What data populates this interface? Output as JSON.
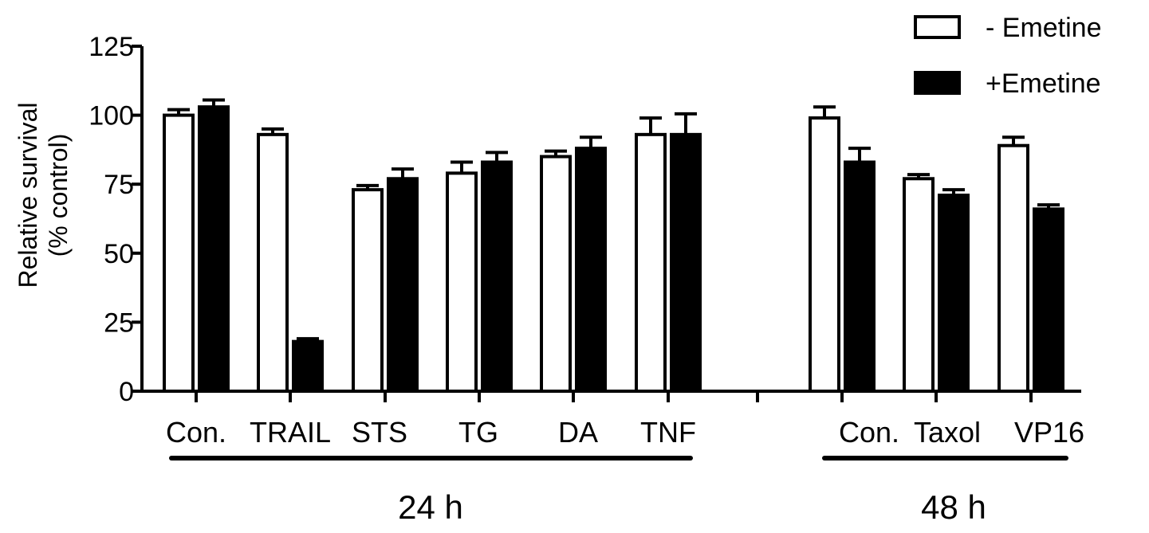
{
  "chart_data": {
    "type": "bar",
    "ylabel_line1": "Relative survival",
    "ylabel_line2": "(% control)",
    "ylim": [
      0,
      125
    ],
    "yticks": [
      "0",
      "25",
      "50",
      "75",
      "100",
      "125"
    ],
    "grid": false,
    "legend_position": "top-right",
    "categories": [
      "Con.",
      "TRAIL",
      "STS",
      "TG",
      "DA",
      "TNF",
      "Con.",
      "Taxol",
      "VP16"
    ],
    "groups": [
      {
        "label": "24 h",
        "categories": [
          "Con.",
          "TRAIL",
          "STS",
          "TG",
          "DA",
          "TNF"
        ]
      },
      {
        "label": "48 h",
        "categories": [
          "Con.",
          "Taxol",
          "VP16"
        ]
      }
    ],
    "series": [
      {
        "name": "- Emetine",
        "fill": "#ffffff",
        "values": [
          100,
          93,
          73,
          79,
          85,
          93,
          99,
          77,
          89
        ],
        "errors": [
          2,
          2,
          1.5,
          4,
          2,
          6,
          4,
          1.5,
          3
        ]
      },
      {
        "name": "+Emetine",
        "fill": "#000000",
        "values": [
          103,
          18,
          77,
          83,
          88,
          93,
          83,
          71,
          66
        ],
        "errors": [
          2.5,
          1,
          3.5,
          3.5,
          4,
          7.5,
          5,
          2,
          1.5
        ]
      }
    ]
  }
}
